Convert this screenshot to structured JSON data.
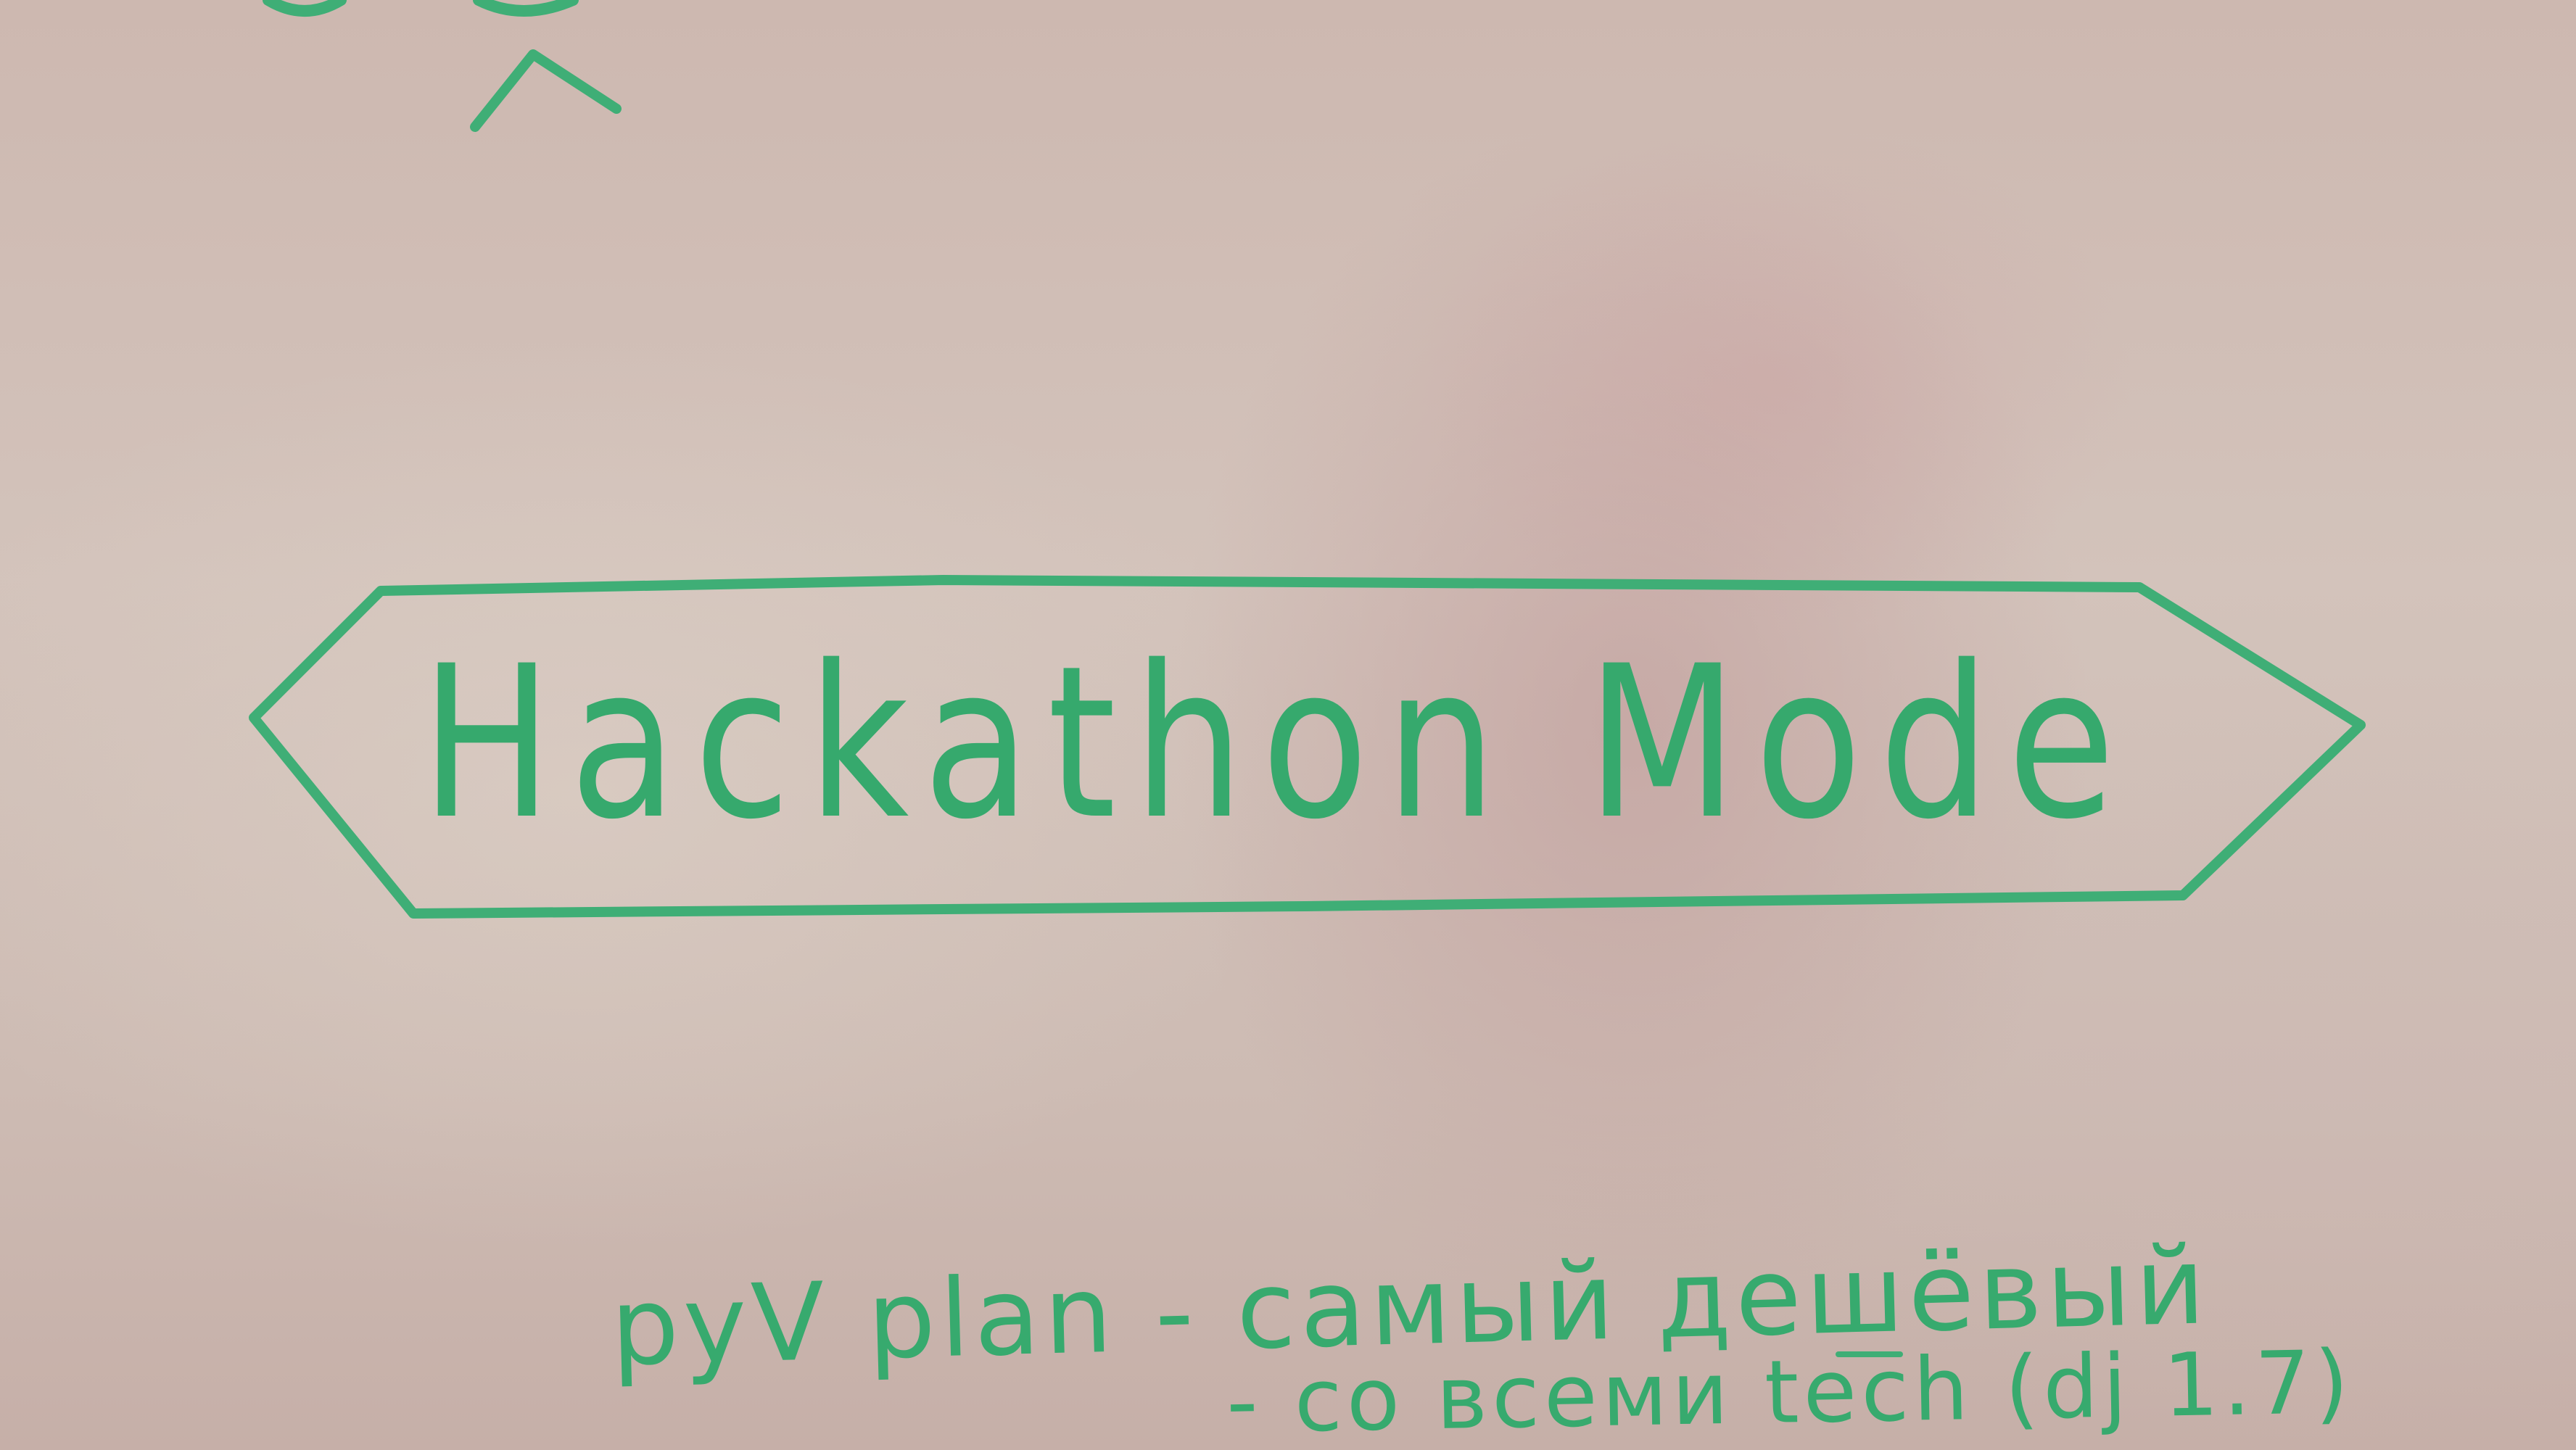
{
  "whiteboard": {
    "title": "Hackathon Mode",
    "notes": [
      "pyV plan - самый дешёвый",
      "- со всеми tech (dj 1.7)"
    ],
    "ink_color": "#3fae76"
  }
}
